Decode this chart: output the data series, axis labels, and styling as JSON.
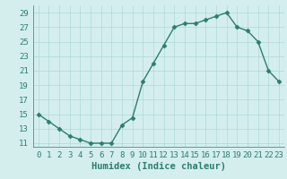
{
  "title": "",
  "xlabel": "Humidex (Indice chaleur)",
  "x_values": [
    0,
    1,
    2,
    3,
    4,
    5,
    6,
    7,
    8,
    9,
    10,
    11,
    12,
    13,
    14,
    15,
    16,
    17,
    18,
    19,
    20,
    21,
    22,
    23
  ],
  "y_values": [
    15,
    14,
    13,
    12,
    11.5,
    11,
    11,
    11,
    13.5,
    14.5,
    19.5,
    22,
    24.5,
    27,
    27.5,
    27.5,
    28,
    28.5,
    29,
    27,
    26.5,
    25,
    21,
    19.5
  ],
  "line_color": "#2d7d6e",
  "marker": "D",
  "marker_size": 2.5,
  "bg_color": "#d4eeee",
  "grid_color": "#b0d8d8",
  "ylim": [
    10.5,
    30
  ],
  "yticks": [
    11,
    13,
    15,
    17,
    19,
    21,
    23,
    25,
    27,
    29
  ],
  "xlim": [
    -0.5,
    23.5
  ],
  "xticks": [
    0,
    1,
    2,
    3,
    4,
    5,
    6,
    7,
    8,
    9,
    10,
    11,
    12,
    13,
    14,
    15,
    16,
    17,
    18,
    19,
    20,
    21,
    22,
    23
  ],
  "xlabel_fontsize": 7.5,
  "tick_fontsize": 6.5,
  "line_width": 1.0
}
